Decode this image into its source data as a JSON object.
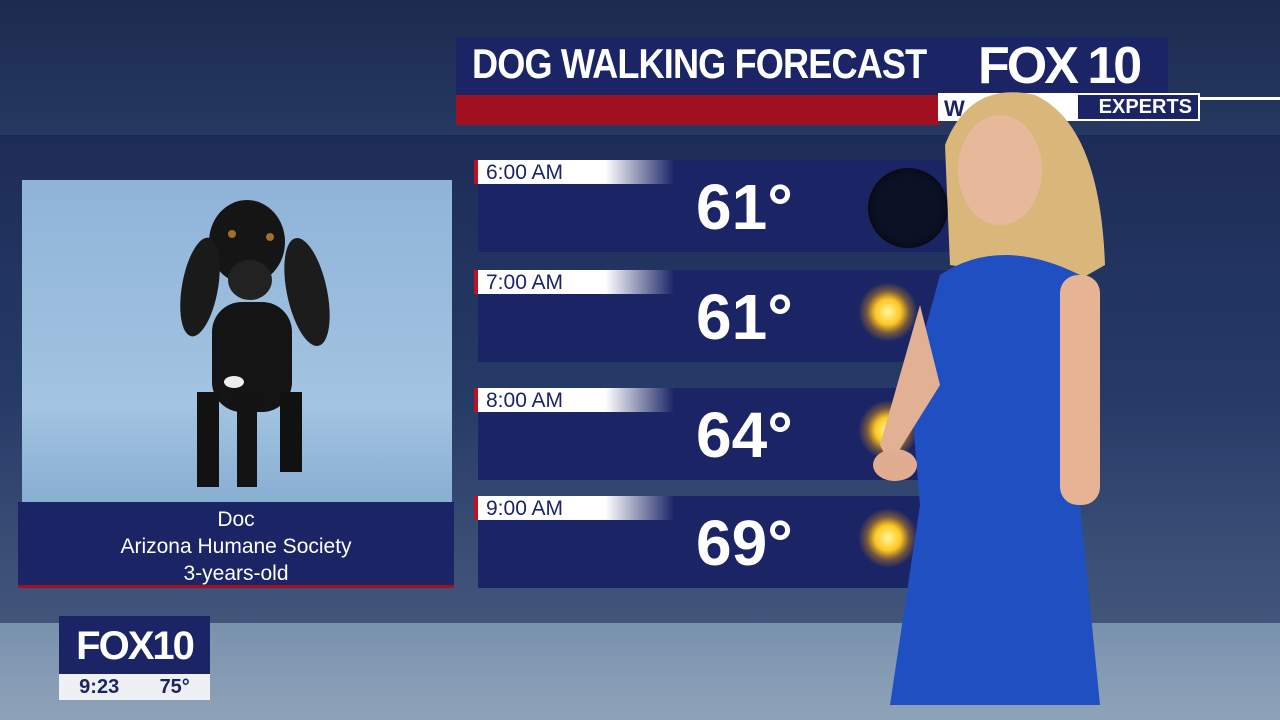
{
  "header": {
    "title": "DOG WALKING FORECAST",
    "logo": "FOX 10",
    "sub_logo_visible_left": "W",
    "sub_logo_visible_right": "EXPERTS"
  },
  "pet": {
    "name": "Doc",
    "organization": "Arizona Humane Society",
    "age": "3-years-old"
  },
  "forecast": [
    {
      "time": "6:00 AM",
      "temp": "61°",
      "icon": "night-moon-icon"
    },
    {
      "time": "7:00 AM",
      "temp": "61°",
      "icon": "sun-icon"
    },
    {
      "time": "8:00 AM",
      "temp": "64°",
      "icon": "sun-icon"
    },
    {
      "time": "9:00 AM",
      "temp": "69°",
      "icon": "sun-icon"
    }
  ],
  "bug": {
    "logo": "FOX10",
    "time": "9:23",
    "temp": "75°"
  },
  "colors": {
    "navy": "#1b2566",
    "red": "#a01020"
  }
}
